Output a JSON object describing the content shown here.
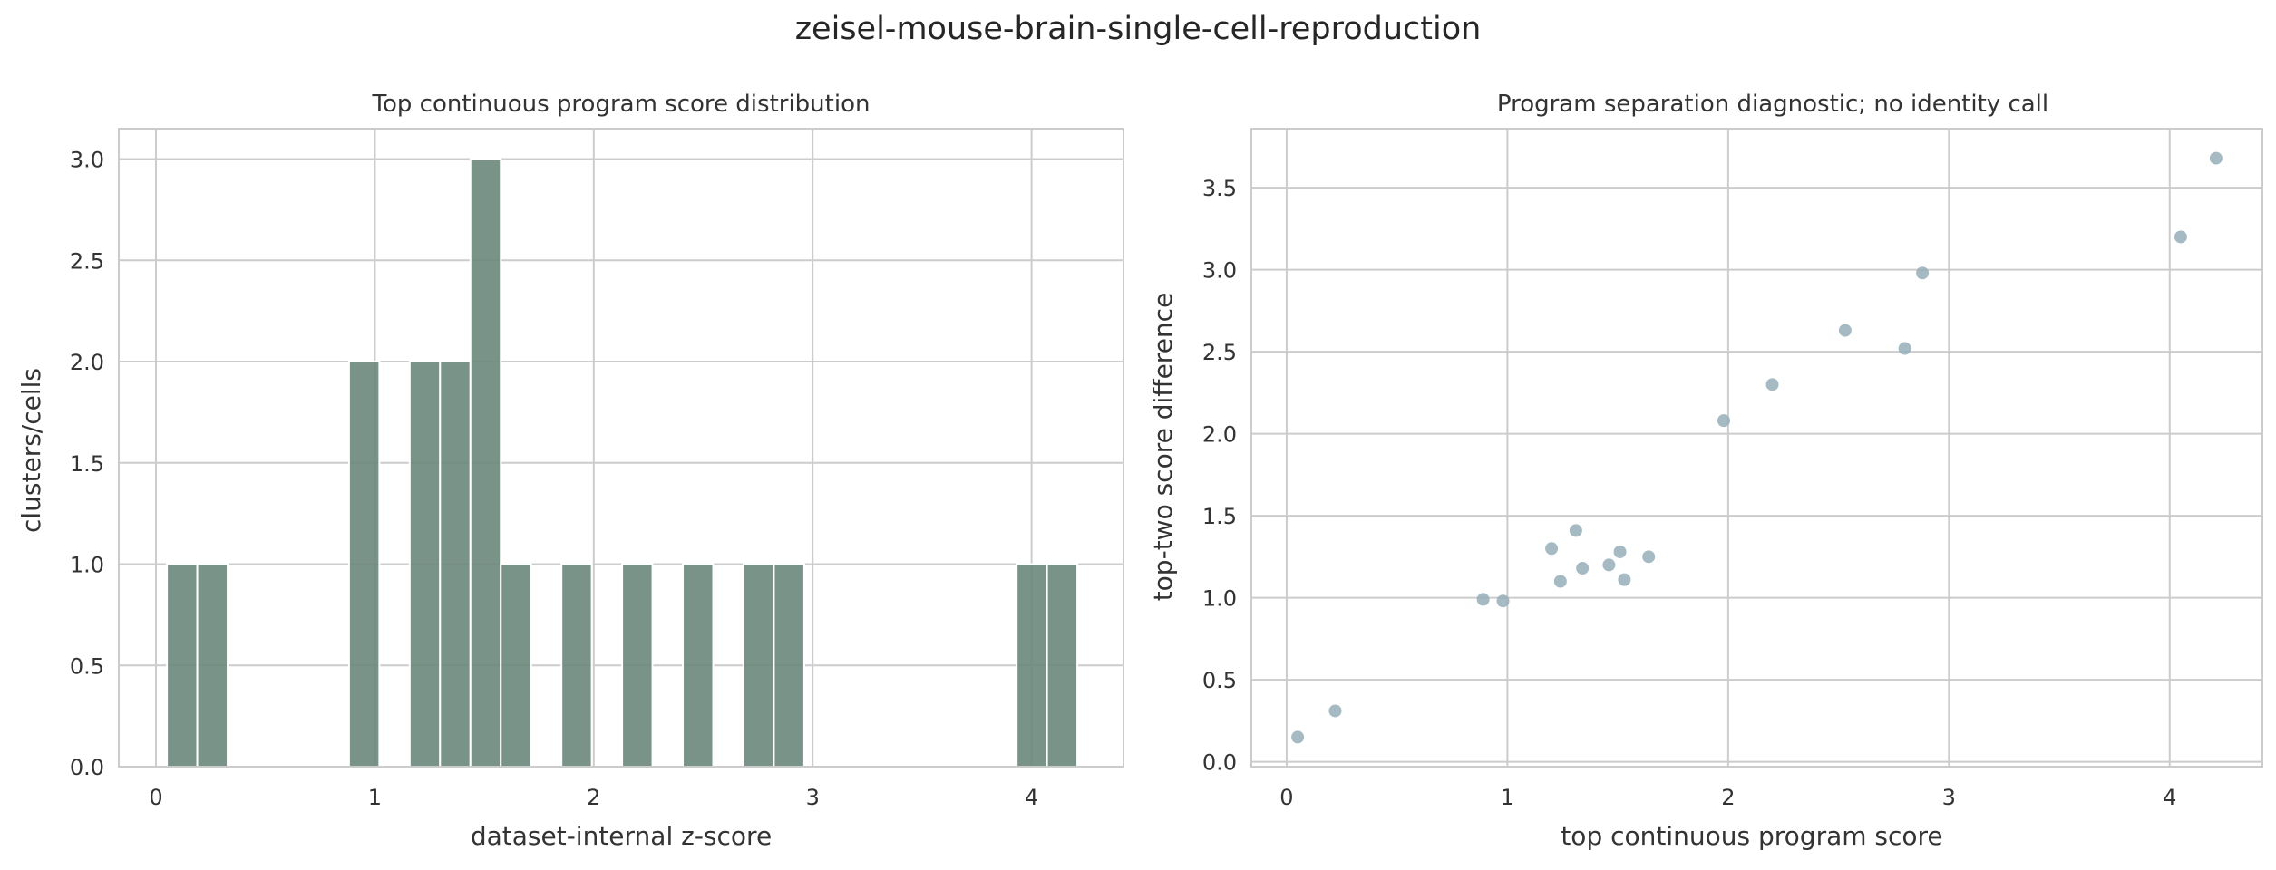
{
  "suptitle": "zeisel-mouse-brain-single-cell-reproduction",
  "colors": {
    "histogram_bar": "#6b877b",
    "scatter_point": "#95aeb7",
    "grid": "#cccccc",
    "axes_edge": "#cccccc"
  },
  "chart_data": [
    {
      "type": "bar",
      "title": "Top continuous program score distribution",
      "xlabel": "dataset-internal z-score",
      "ylabel": "clusters/cells",
      "xlim": [
        -0.17,
        4.42
      ],
      "ylim": [
        0,
        3.15
      ],
      "xticks": [
        0,
        1,
        2,
        3,
        4
      ],
      "xtick_labels": [
        "0",
        "1",
        "2",
        "3",
        "4"
      ],
      "yticks": [
        0,
        0.5,
        1,
        1.5,
        2,
        2.5,
        3
      ],
      "ytick_labels": [
        "0.0",
        "0.5",
        "1.0",
        "1.5",
        "2.0",
        "2.5",
        "3.0"
      ],
      "grid": true,
      "bin_edges": [
        0.05,
        0.1886,
        0.3273,
        0.4659,
        0.6045,
        0.7432,
        0.8818,
        1.0205,
        1.1591,
        1.2977,
        1.4364,
        1.575,
        1.7136,
        1.8523,
        1.9909,
        2.1295,
        2.2682,
        2.4068,
        2.5455,
        2.6841,
        2.8227,
        2.9614,
        3.1,
        3.2386,
        3.3773,
        3.5159,
        3.6545,
        3.7932,
        3.9318,
        4.0705,
        4.2091
      ],
      "counts": [
        1,
        1,
        0,
        0,
        0,
        0,
        2,
        0,
        2,
        2,
        3,
        1,
        0,
        1,
        0,
        1,
        0,
        1,
        0,
        1,
        1,
        0,
        0,
        0,
        0,
        0,
        0,
        0,
        1,
        1
      ]
    },
    {
      "type": "scatter",
      "title": "Program separation diagnostic; no identity call",
      "xlabel": "top continuous program score",
      "ylabel": "top-two score difference",
      "xlim": [
        -0.16,
        4.42
      ],
      "ylim": [
        -0.03,
        3.86
      ],
      "xticks": [
        0,
        1,
        2,
        3,
        4
      ],
      "xtick_labels": [
        "0",
        "1",
        "2",
        "3",
        "4"
      ],
      "yticks": [
        0,
        0.5,
        1,
        1.5,
        2,
        2.5,
        3,
        3.5
      ],
      "ytick_labels": [
        "0.0",
        "0.5",
        "1.0",
        "1.5",
        "2.0",
        "2.5",
        "3.0",
        "3.5"
      ],
      "grid": true,
      "points": [
        {
          "x": 0.05,
          "y": 0.15
        },
        {
          "x": 0.22,
          "y": 0.31
        },
        {
          "x": 0.89,
          "y": 0.99
        },
        {
          "x": 0.98,
          "y": 0.98
        },
        {
          "x": 1.2,
          "y": 1.3
        },
        {
          "x": 1.24,
          "y": 1.1
        },
        {
          "x": 1.31,
          "y": 1.41
        },
        {
          "x": 1.34,
          "y": 1.18
        },
        {
          "x": 1.46,
          "y": 1.2
        },
        {
          "x": 1.51,
          "y": 1.28
        },
        {
          "x": 1.53,
          "y": 1.11
        },
        {
          "x": 1.64,
          "y": 1.25
        },
        {
          "x": 1.98,
          "y": 2.08
        },
        {
          "x": 2.2,
          "y": 2.3
        },
        {
          "x": 2.53,
          "y": 2.63
        },
        {
          "x": 2.8,
          "y": 2.52
        },
        {
          "x": 2.88,
          "y": 2.98
        },
        {
          "x": 4.05,
          "y": 3.2
        },
        {
          "x": 4.21,
          "y": 3.68
        }
      ]
    }
  ]
}
